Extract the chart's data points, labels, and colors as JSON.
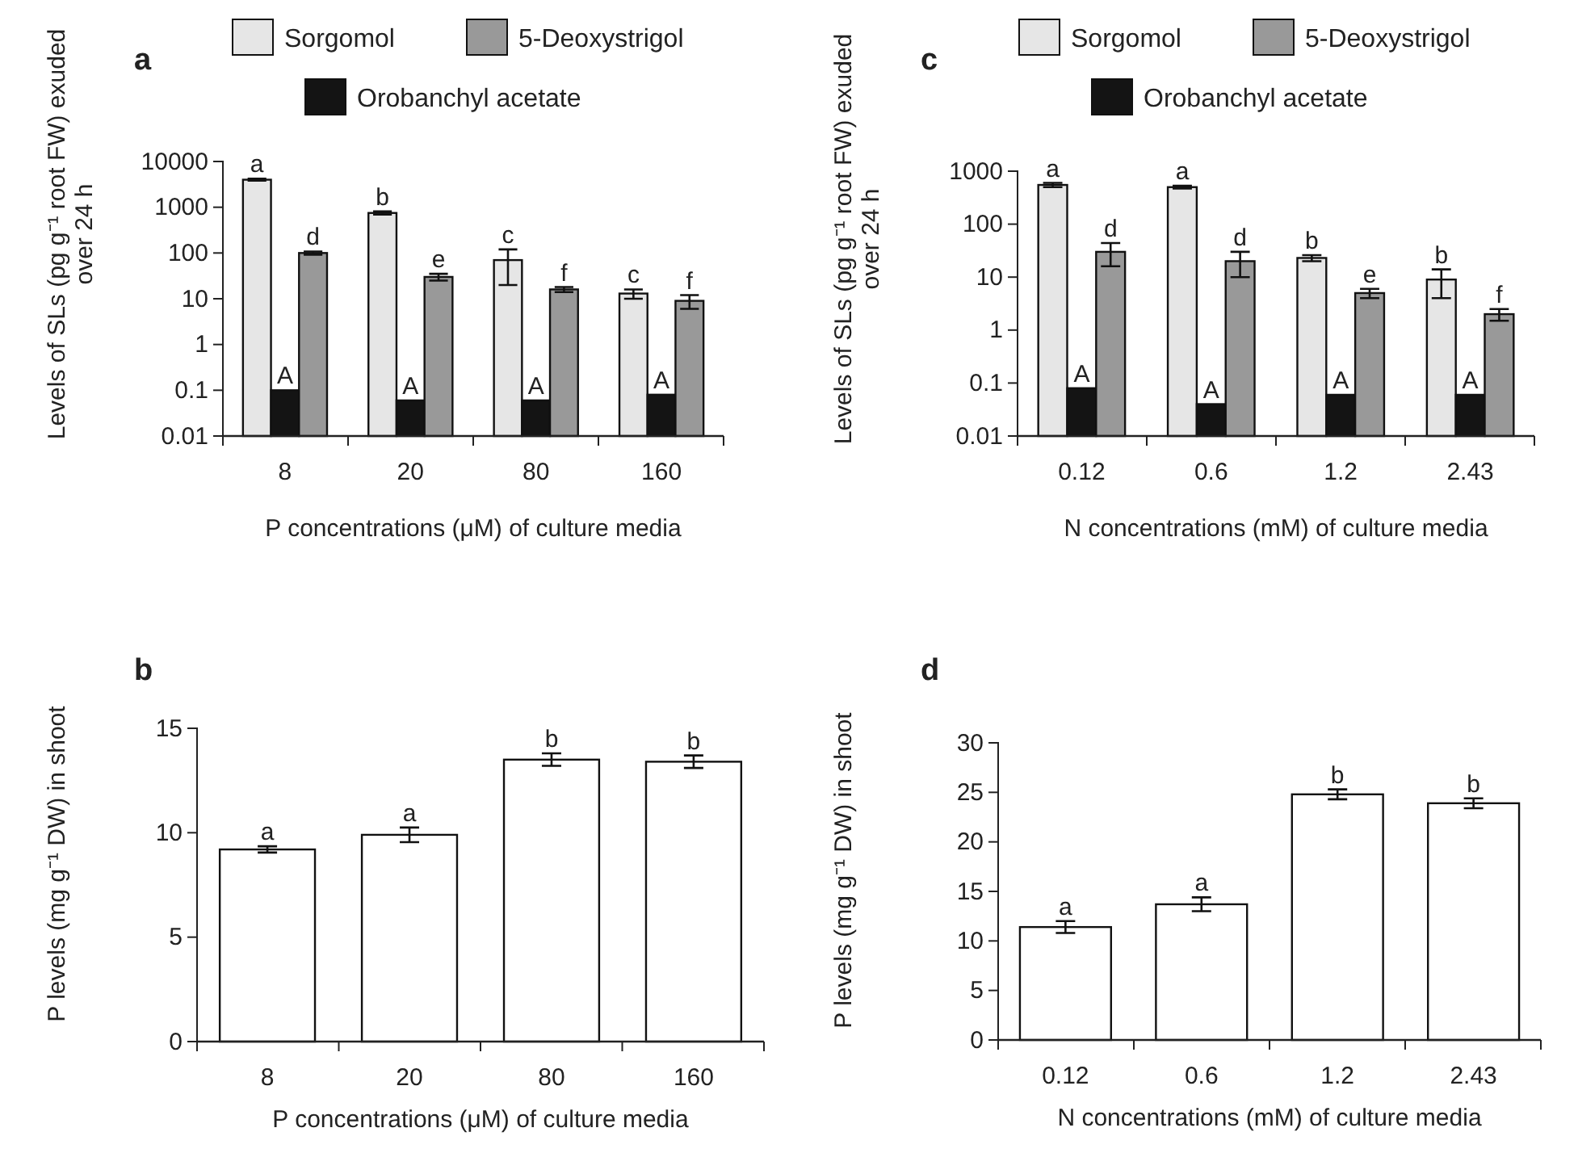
{
  "chart_data": [
    {
      "type": "bar",
      "title": "a",
      "categories": [
        "8",
        "20",
        "80",
        "160"
      ],
      "xlabel": "P concentrations (μM) of culture media",
      "ylabel": "Levels of SLs (pg g⁻¹ root FW) exuded over 24 h",
      "log": true,
      "ylim": [
        0.01,
        10000
      ],
      "yticks": [
        0.01,
        0.1,
        1,
        10,
        100,
        1000,
        10000
      ],
      "legend": "top",
      "grid": false,
      "series": [
        {
          "name": "Sorgomol",
          "color": "#e6e6e6",
          "values": [
            4000,
            750,
            70,
            13
          ],
          "errors": [
            200,
            60,
            50,
            3
          ],
          "value_labels": [
            "a",
            "b",
            "c",
            "c"
          ]
        },
        {
          "name": "Orobanchyl acetate",
          "color": "#141414",
          "values": [
            0.1,
            0.06,
            0.06,
            0.08
          ],
          "value_labels": [
            "A",
            "A",
            "A",
            "A"
          ]
        },
        {
          "name": "5-Deoxystrigol",
          "color": "#999999",
          "values": [
            100,
            30,
            16,
            9
          ],
          "errors": [
            8,
            5,
            2,
            3
          ],
          "value_labels": [
            "d",
            "e",
            "f",
            "f"
          ]
        }
      ]
    },
    {
      "type": "bar",
      "title": "b",
      "categories": [
        "8",
        "20",
        "80",
        "160"
      ],
      "xlabel": "P concentrations (μM) of culture media",
      "ylabel": "P levels (mg g⁻¹ DW) in shoot",
      "ylim": [
        0,
        15
      ],
      "yticks": [
        0,
        5,
        10,
        15
      ],
      "legend": false,
      "grid": false,
      "series": [
        {
          "color": "#ffffff",
          "values": [
            9.2,
            9.9,
            13.5,
            13.4
          ],
          "errors": [
            0.15,
            0.35,
            0.3,
            0.3
          ],
          "value_labels": [
            "a",
            "a",
            "b",
            "b"
          ]
        }
      ]
    },
    {
      "type": "bar",
      "title": "c",
      "categories": [
        "0.12",
        "0.6",
        "1.2",
        "2.43"
      ],
      "xlabel": "N concentrations (mM) of culture media",
      "ylabel": "Levels of SLs (pg g⁻¹ root FW) exuded over 24 h",
      "log": true,
      "ylim": [
        0.01,
        1000
      ],
      "yticks": [
        0.01,
        0.1,
        1,
        10,
        100,
        1000
      ],
      "legend": "top",
      "grid": false,
      "series": [
        {
          "name": "Sorgomol",
          "color": "#e6e6e6",
          "values": [
            550,
            500,
            23,
            9
          ],
          "errors": [
            50,
            30,
            3,
            5
          ],
          "value_labels": [
            "a",
            "a",
            "b",
            "b"
          ]
        },
        {
          "name": "Orobanchyl acetate",
          "color": "#141414",
          "values": [
            0.08,
            0.04,
            0.06,
            0.06
          ],
          "value_labels": [
            "A",
            "A",
            "A",
            "A"
          ]
        },
        {
          "name": "5-Deoxystrigol",
          "color": "#999999",
          "values": [
            30,
            20,
            5,
            2
          ],
          "errors": [
            14,
            10,
            1,
            0.5
          ],
          "value_labels": [
            "d",
            "d",
            "e",
            "f"
          ]
        }
      ]
    },
    {
      "type": "bar",
      "title": "d",
      "categories": [
        "0.12",
        "0.6",
        "1.2",
        "2.43"
      ],
      "xlabel": "N concentrations (mM) of culture media",
      "ylabel": "P levels (mg g⁻¹ DW) in shoot",
      "ylim": [
        0,
        30
      ],
      "yticks": [
        0,
        5,
        10,
        15,
        20,
        25,
        30
      ],
      "legend": false,
      "grid": false,
      "series": [
        {
          "color": "#ffffff",
          "values": [
            11.4,
            13.7,
            24.8,
            23.9
          ],
          "errors": [
            0.6,
            0.7,
            0.5,
            0.5
          ],
          "value_labels": [
            "a",
            "a",
            "b",
            "b"
          ]
        }
      ]
    }
  ]
}
